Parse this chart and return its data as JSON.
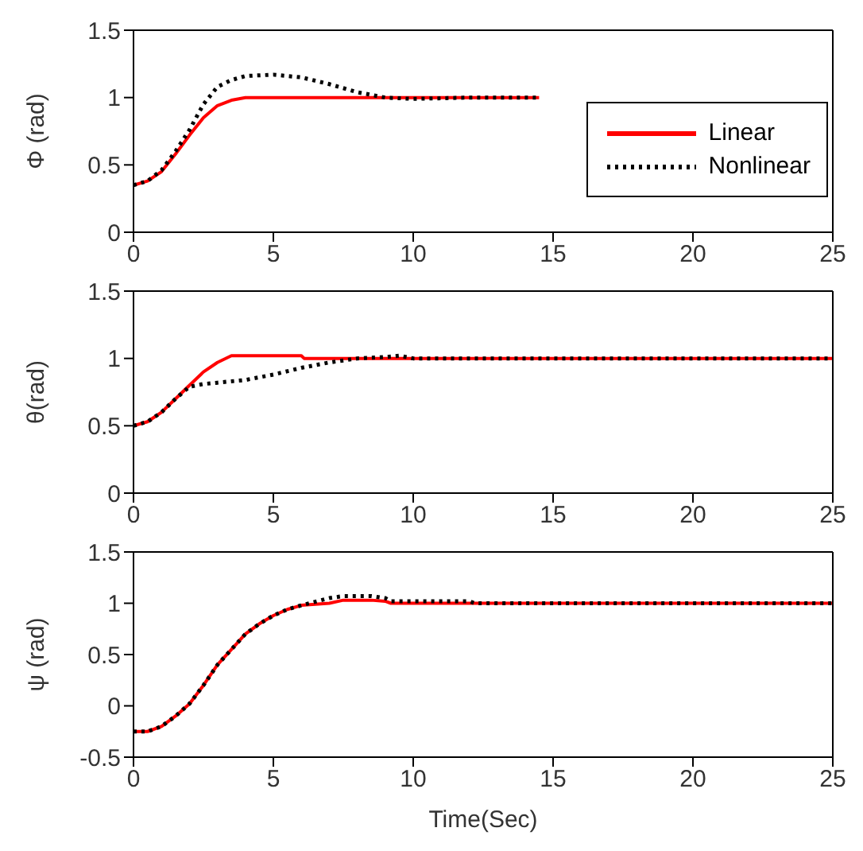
{
  "chart_data": [
    {
      "type": "line",
      "ylabel": "Φ (rad)",
      "xlim": [
        0,
        25
      ],
      "xticks": [
        0,
        5,
        10,
        15,
        20,
        25
      ],
      "ylim": [
        0,
        1.5
      ],
      "yticks": [
        0,
        0.5,
        1,
        1.5
      ],
      "grid": false,
      "legend": "right",
      "marker": "none",
      "series": [
        {
          "name": "Linear",
          "color": "#ff0000",
          "line_style": "solid",
          "x": [
            0,
            0.5,
            1,
            1.5,
            2,
            2.5,
            3,
            3.5,
            4,
            6,
            8,
            10,
            12,
            14.5
          ],
          "values": [
            0.35,
            0.38,
            0.45,
            0.58,
            0.72,
            0.85,
            0.94,
            0.98,
            1.0,
            1.0,
            1.0,
            1.0,
            1.0,
            1.0
          ]
        },
        {
          "name": "Nonlinear",
          "color": "#000000",
          "line_style": "dotted",
          "x": [
            0,
            0.5,
            1,
            1.5,
            2,
            2.5,
            3,
            3.5,
            4,
            5,
            6,
            7,
            8,
            9,
            10,
            12,
            14.5
          ],
          "values": [
            0.35,
            0.38,
            0.46,
            0.6,
            0.76,
            0.95,
            1.08,
            1.13,
            1.16,
            1.17,
            1.15,
            1.1,
            1.04,
            1.0,
            0.99,
            1.0,
            1.0
          ]
        }
      ]
    },
    {
      "type": "line",
      "ylabel": "θ(rad)",
      "xlim": [
        0,
        25
      ],
      "xticks": [
        0,
        5,
        10,
        15,
        20,
        25
      ],
      "ylim": [
        0,
        1.5
      ],
      "yticks": [
        0,
        0.5,
        1,
        1.5
      ],
      "grid": false,
      "marker": "none",
      "series": [
        {
          "color": "#ff0000",
          "line_style": "solid",
          "x": [
            0,
            0.5,
            1,
            1.5,
            2,
            2.5,
            3,
            3.5,
            4,
            6,
            6.1,
            10,
            15,
            20,
            25
          ],
          "values": [
            0.5,
            0.53,
            0.6,
            0.7,
            0.8,
            0.9,
            0.97,
            1.02,
            1.02,
            1.02,
            1.0,
            1.0,
            1.0,
            1.0,
            1.0
          ]
        },
        {
          "color": "#000000",
          "line_style": "dotted",
          "x": [
            0,
            0.5,
            1,
            1.5,
            2,
            2.5,
            3,
            4,
            5,
            6,
            7,
            8,
            9,
            9.5,
            10,
            15,
            20,
            25
          ],
          "values": [
            0.5,
            0.53,
            0.6,
            0.7,
            0.79,
            0.81,
            0.82,
            0.84,
            0.88,
            0.93,
            0.97,
            1.0,
            1.01,
            1.02,
            1.0,
            1.0,
            1.0,
            1.0
          ]
        }
      ]
    },
    {
      "type": "line",
      "ylabel": "ψ (rad)",
      "xlabel": "Time(Sec)",
      "xlim": [
        0,
        25
      ],
      "xticks": [
        0,
        5,
        10,
        15,
        20,
        25
      ],
      "ylim": [
        -0.5,
        1.5
      ],
      "yticks": [
        -0.5,
        0,
        0.5,
        1,
        1.5
      ],
      "grid": false,
      "marker": "none",
      "series": [
        {
          "color": "#ff0000",
          "line_style": "solid",
          "x": [
            0,
            0.5,
            1,
            1.5,
            2,
            2.5,
            3,
            3.5,
            4,
            4.5,
            5,
            5.5,
            6,
            7,
            7.5,
            8.5,
            9,
            9.2,
            15,
            20,
            25
          ],
          "values": [
            -0.25,
            -0.25,
            -0.2,
            -0.1,
            0.02,
            0.2,
            0.4,
            0.55,
            0.7,
            0.8,
            0.88,
            0.94,
            0.98,
            1.0,
            1.03,
            1.03,
            1.02,
            1.0,
            1.0,
            1.0,
            1.0
          ]
        },
        {
          "color": "#000000",
          "line_style": "dotted",
          "x": [
            0,
            0.5,
            1,
            1.5,
            2,
            2.5,
            3,
            3.5,
            4,
            4.5,
            5,
            5.5,
            6,
            7,
            7.5,
            8.5,
            9,
            9.2,
            12,
            12.2,
            15,
            20,
            25
          ],
          "values": [
            -0.25,
            -0.25,
            -0.2,
            -0.1,
            0.02,
            0.2,
            0.4,
            0.55,
            0.7,
            0.8,
            0.88,
            0.94,
            0.98,
            1.05,
            1.07,
            1.07,
            1.05,
            1.02,
            1.02,
            1.0,
            1.0,
            1.0,
            1.0
          ]
        }
      ]
    }
  ]
}
